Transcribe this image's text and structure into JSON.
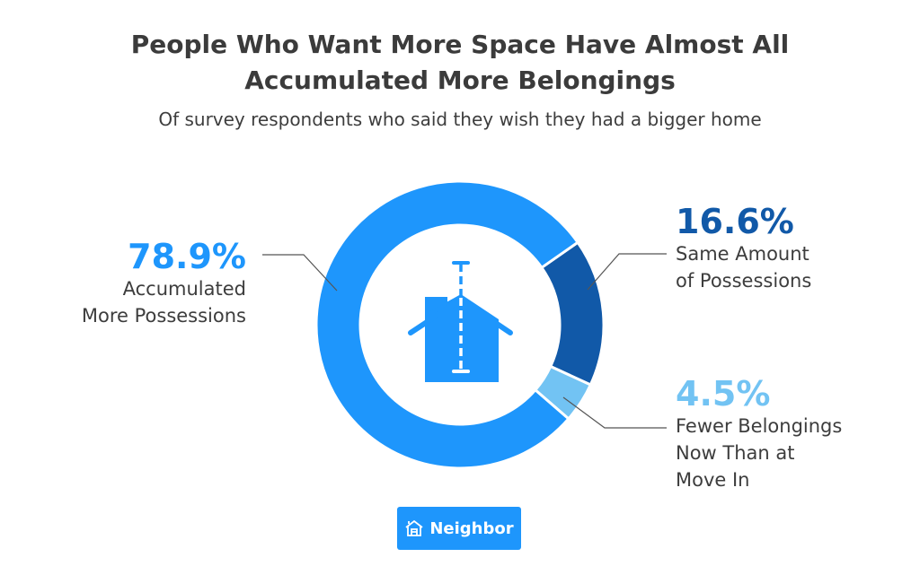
{
  "chart_data": {
    "type": "pie",
    "donut": true,
    "title": "People Who Want More Space Have Almost All Accumulated More Belongings",
    "subtitle": "Of survey respondents who said they wish they had a bigger home",
    "slices": [
      {
        "value": 16.6,
        "label_pct": "16.6%",
        "label": "Same Amount of Possessions",
        "color": "#1159a8"
      },
      {
        "value": 4.5,
        "label_pct": "4.5%",
        "label": "Fewer Belongings Now Than at Move In",
        "color": "#72c3f3"
      },
      {
        "value": 78.9,
        "label_pct": "78.9%",
        "label": "Accumulated More Possessions",
        "color": "#1e96fc"
      }
    ],
    "center_icon": "house-height-icon"
  },
  "labels": {
    "left_l1": "Accumulated",
    "left_l2": "More Possessions",
    "r1_l1": "Same Amount",
    "r1_l2": "of Possessions",
    "r2_l1": "Fewer Belongings",
    "r2_l2": "Now Than at",
    "r2_l3": "Move In"
  },
  "brand": {
    "name": "Neighbor",
    "icon": "house-logo-icon"
  }
}
